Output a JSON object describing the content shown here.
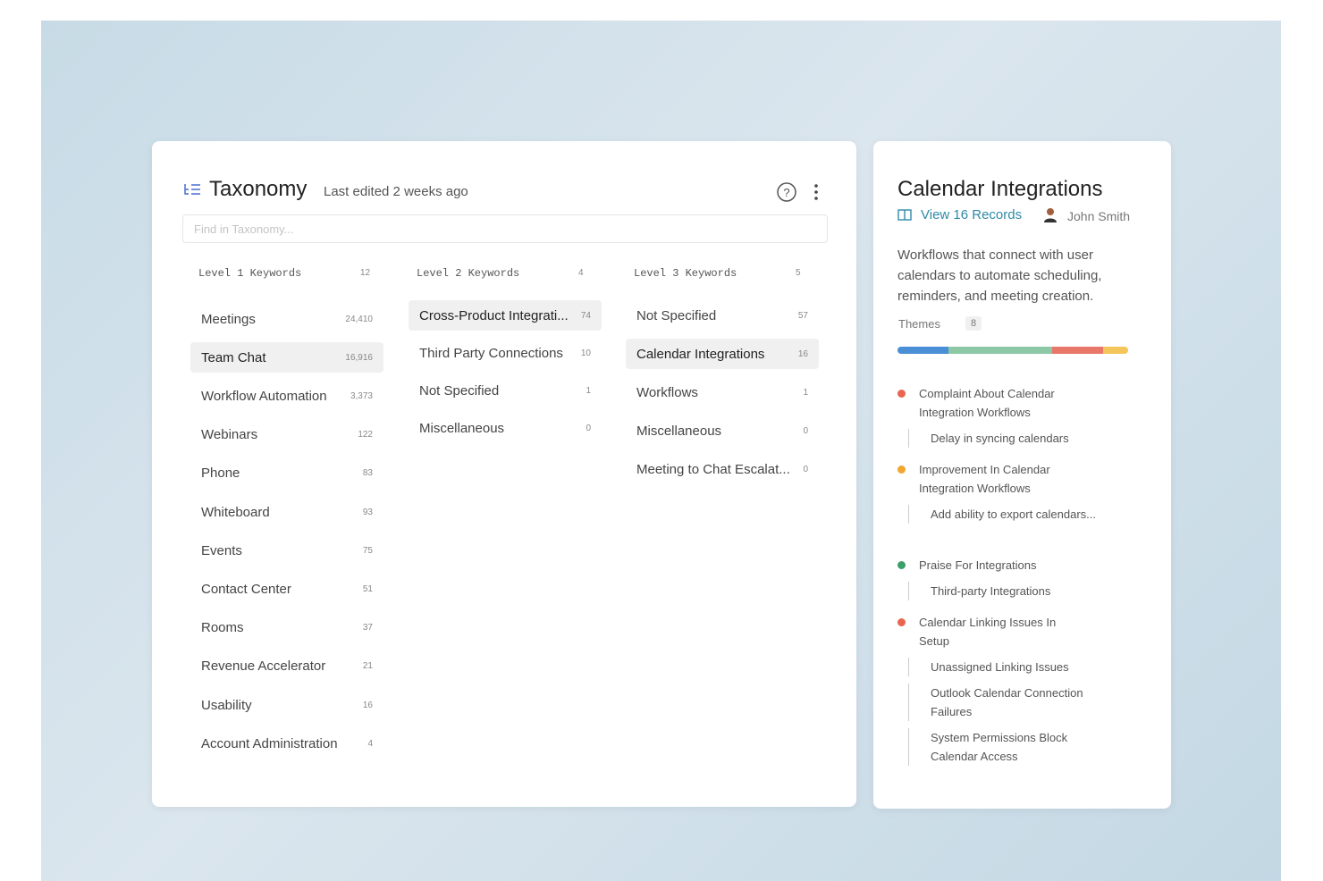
{
  "header": {
    "title": "Taxonomy",
    "subtitle": "Last edited 2 weeks ago",
    "search_placeholder": "Find in Taxonomy..."
  },
  "columns": [
    {
      "title": "Level 1 Keywords",
      "count": 12,
      "items": [
        {
          "label": "Meetings",
          "count": "24,410"
        },
        {
          "label": "Team Chat",
          "count": "16,916"
        },
        {
          "label": "Workflow Automation",
          "count": "3,373"
        },
        {
          "label": "Webinars",
          "count": 122
        },
        {
          "label": "Phone",
          "count": 83
        },
        {
          "label": "Whiteboard",
          "count": 93
        },
        {
          "label": "Events",
          "count": 75
        },
        {
          "label": "Contact Center",
          "count": 51
        },
        {
          "label": "Rooms",
          "count": 37
        },
        {
          "label": "Revenue Accelerator",
          "count": 21
        },
        {
          "label": "Usability",
          "count": 16
        },
        {
          "label": "Account Administration",
          "count": 4
        }
      ]
    },
    {
      "title": "Level 2 Keywords",
      "count": 4,
      "items": [
        {
          "label": "Cross-Product Integrati...",
          "count": 74
        },
        {
          "label": "Third Party Connections",
          "count": 10
        },
        {
          "label": "Not Specified",
          "count": 1
        },
        {
          "label": "Miscellaneous",
          "count": 0
        }
      ]
    },
    {
      "title": "Level 3 Keywords",
      "count": 5,
      "items": [
        {
          "label": "Not Specified",
          "count": 57
        },
        {
          "label": "Calendar Integrations",
          "count": 16
        },
        {
          "label": "Workflows",
          "count": 1
        },
        {
          "label": "Miscellaneous",
          "count": 0
        },
        {
          "label": "Meeting to Chat Escalat...",
          "count": 0
        }
      ]
    }
  ],
  "detail": {
    "title": "Calendar Integrations",
    "records_link": "View 16 Records",
    "owner": "John Smith",
    "description": "Workflows that connect with user calendars to automate scheduling, reminders, and meeting creation.",
    "themes_label": "Themes",
    "themes_count": 8,
    "themes": [
      {
        "title": "Complaint About Calendar Integration Workflows",
        "color": "#e8664f",
        "children": [
          "Delay in syncing calendars"
        ]
      },
      {
        "title": "Improvement In Calendar Integration Workflows",
        "color": "#f0a630",
        "children": [
          "Add ability to export calendars..."
        ]
      },
      {
        "title": "Praise For Integrations",
        "color": "#3aa06a",
        "children": [
          "Third-party Integrations"
        ]
      },
      {
        "title": "Calendar Linking Issues In Setup",
        "color": "#e8664f",
        "children": [
          "Unassigned Linking Issues",
          "Outlook Calendar Connection Failures",
          "System Permissions Block Calendar Access"
        ]
      }
    ]
  }
}
